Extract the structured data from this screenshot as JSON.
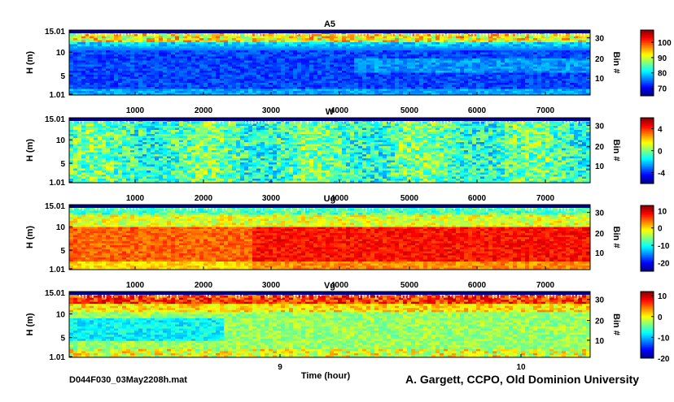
{
  "chart_data": [
    {
      "type": "heatmap",
      "title": "A5",
      "ylabel": "H (m)",
      "y_ticks": [
        "15.01",
        "10",
        "5",
        "1.01"
      ],
      "y2label": "Bin #",
      "y2_ticks": [
        "30",
        "20",
        "10"
      ],
      "x_ticks": [
        "1000",
        "2000",
        "3000",
        "4000",
        "5000",
        "6000",
        "7000"
      ],
      "colorbar_ticks": [
        "100",
        "90",
        "80",
        "70"
      ],
      "clim": [
        65,
        108
      ],
      "colormap": "jet"
    },
    {
      "type": "heatmap",
      "title": "W",
      "ylabel": "H (m)",
      "y_ticks": [
        "15.01",
        "10",
        "5",
        "1.01"
      ],
      "y2label": "Bin #",
      "y2_ticks": [
        "30",
        "20",
        "10"
      ],
      "x_ticks": [
        "1000",
        "2000",
        "3000",
        "4000",
        "5000",
        "6000",
        "7000"
      ],
      "colorbar_ticks": [
        "4",
        "0",
        "-4"
      ],
      "clim": [
        -6,
        6
      ],
      "colormap": "jet"
    },
    {
      "type": "heatmap",
      "title": "Ug",
      "ylabel": "H (m)",
      "y_ticks": [
        "15.01",
        "10",
        "5",
        "1.01"
      ],
      "y2label": "Bin #",
      "y2_ticks": [
        "30",
        "20",
        "10"
      ],
      "x_ticks": [
        "1000",
        "2000",
        "3000",
        "4000",
        "5000",
        "6000",
        "7000"
      ],
      "colorbar_ticks": [
        "10",
        "0",
        "-10",
        "-20"
      ],
      "clim": [
        -25,
        13
      ],
      "colormap": "jet"
    },
    {
      "type": "heatmap",
      "title": "Vg",
      "ylabel": "H (m)",
      "y_ticks": [
        "15.01",
        "10",
        "5",
        "1.01"
      ],
      "y2label": "Bin #",
      "y2_ticks": [
        "30",
        "20",
        "10"
      ],
      "x_ticks": [
        "9",
        "10"
      ],
      "xlabel": "Time (hour)",
      "colorbar_ticks": [
        "10",
        "0",
        "-10",
        "-20"
      ],
      "clim": [
        -20,
        12
      ],
      "colormap": "jet"
    }
  ],
  "footer": {
    "filename": "D044F030_03May2208h.mat",
    "credit": "A. Gargett, CCPO, Old Dominion University"
  }
}
